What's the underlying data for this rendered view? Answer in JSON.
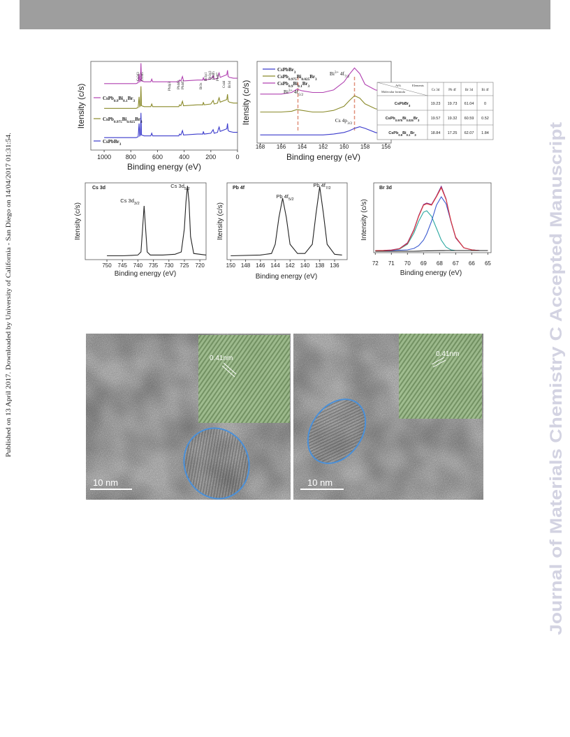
{
  "side_note": "Published on 13 April 2017. Downloaded by University of California - San Diego on 14/04/2017 01:31:54.",
  "watermark": "Journal of Materials Chemistry C Accepted Manuscript",
  "chart_data": [
    {
      "type": "line",
      "x_label": "Binding energy (eV)",
      "y_label": "Itensity (c/s)",
      "x": [
        1000,
        900,
        800,
        760,
        745,
        738,
        733,
        728,
        724,
        720,
        700,
        650,
        643,
        636,
        600,
        500,
        440,
        435,
        425,
        413,
        405,
        300,
        260,
        256,
        250,
        200,
        183,
        175,
        150,
        143,
        138,
        130,
        80,
        75,
        70,
        60,
        30,
        0
      ],
      "series": [
        {
          "name": "CsPbBr3",
          "color": "#3a3acc",
          "values": [
            14,
            14,
            14,
            14,
            15,
            30,
            16,
            17,
            42,
            17,
            16,
            16,
            19,
            16,
            16,
            16,
            16,
            18,
            17,
            22,
            17,
            18,
            18,
            21,
            18,
            19,
            23,
            19,
            20,
            24,
            26,
            21,
            24,
            30,
            22,
            21,
            20,
            20
          ]
        },
        {
          "name": "CsPb0.975Bi0.025Br3",
          "color": "#8a8a2a",
          "values": [
            47,
            47,
            47,
            47,
            48,
            60,
            49,
            50,
            72,
            50,
            49,
            49,
            52,
            49,
            49,
            49,
            49,
            51,
            50,
            55,
            50,
            51,
            51,
            54,
            51,
            52,
            56,
            52,
            53,
            57,
            59,
            54,
            57,
            63,
            55,
            54,
            53,
            53
          ]
        },
        {
          "name": "CsPb0.9Bi0.1Br3",
          "color": "#b040b0",
          "values": [
            75,
            75,
            75,
            75,
            76,
            86,
            77,
            78,
            98,
            78,
            77,
            77,
            80,
            77,
            77,
            77,
            77,
            79,
            78,
            83,
            78,
            79,
            79,
            82,
            79,
            80,
            84,
            80,
            81,
            85,
            87,
            82,
            85,
            90,
            83,
            82,
            81,
            81
          ]
        }
      ],
      "annotations": [
        "Cs3d3",
        "Cs3d5",
        "Pb4p3",
        "Pb4d3",
        "Pb4d5",
        "Br3s",
        "Br3p1",
        "Br3p3",
        "Pb4f5",
        "Pb4f7",
        "Cs4d",
        "Br3d"
      ],
      "xlim": [
        1100,
        0
      ],
      "xticks": [
        1000,
        800,
        600,
        400,
        200,
        0
      ],
      "ylim": [
        0,
        100
      ]
    },
    {
      "type": "line",
      "x_label": "Binding energy (eV)",
      "y_label": "Itensity (c/s)",
      "x": [
        168,
        167,
        166,
        165,
        164.5,
        164,
        163,
        162,
        161,
        160,
        159.5,
        159,
        158.5,
        158,
        157,
        156,
        155
      ],
      "series": [
        {
          "name": "CsPbBr3",
          "color": "#3a3acc",
          "values": [
            10,
            10,
            10,
            10,
            10,
            10,
            10,
            10,
            11,
            13,
            15,
            18,
            20,
            18,
            13,
            10,
            10
          ]
        },
        {
          "name": "CsPb0.975Bi0.025Br3",
          "color": "#8a8a2a",
          "values": [
            38,
            38,
            38,
            39,
            41,
            40,
            38,
            38,
            40,
            45,
            52,
            58,
            55,
            48,
            42,
            40,
            40
          ]
        },
        {
          "name": "CsPb0.9Bi0.1Br3",
          "color": "#b040b0",
          "values": [
            60,
            60,
            60,
            62,
            66,
            64,
            62,
            62,
            65,
            75,
            84,
            92,
            85,
            72,
            65,
            63,
            63
          ]
        }
      ],
      "annotations": [
        "Bi3+ 4f7/2",
        "Bi3+ 4f5/2",
        "Cs 4p3/2"
      ],
      "reference_lines": [
        164.4,
        159.0
      ],
      "xlim": [
        168.3,
        155.5
      ],
      "xticks": [
        168,
        166,
        164,
        162,
        160,
        158,
        156
      ],
      "ylim": [
        0,
        100
      ]
    },
    {
      "type": "line",
      "panel_label": "Cs 3d",
      "x_label": "Binding energy (eV)",
      "y_label": "Itensity (c/s)",
      "x": [
        750,
        745,
        742,
        740,
        739,
        738.5,
        738,
        737.5,
        737,
        736,
        732,
        728,
        726,
        725,
        724.5,
        724,
        723.5,
        723,
        722,
        718
      ],
      "series": [
        {
          "color": "#222222",
          "values": [
            5,
            5,
            5.5,
            6,
            10,
            40,
            70,
            40,
            10,
            6,
            6,
            7,
            10,
            40,
            75,
            96,
            75,
            30,
            8,
            6
          ]
        }
      ],
      "annotations": [
        "Cs 3d3/2",
        "Cs 3d5/2"
      ],
      "xlim": [
        757,
        718
      ],
      "xticks": [
        750,
        745,
        740,
        735,
        730,
        725,
        720
      ],
      "ylim": [
        0,
        100
      ]
    },
    {
      "type": "line",
      "panel_label": "Pb 4f",
      "x_label": "Binding energy (eV)",
      "y_label": "Itensity (c/s)",
      "x": [
        150,
        146,
        144.5,
        144,
        143.5,
        143,
        142.5,
        142,
        141,
        140,
        139,
        138.5,
        138,
        137.5,
        137,
        136,
        135
      ],
      "series": [
        {
          "color": "#222222",
          "values": [
            5,
            6,
            8,
            20,
            55,
            80,
            55,
            20,
            8,
            8,
            20,
            60,
            95,
            60,
            20,
            7,
            6
          ]
        }
      ],
      "annotations": [
        "Pb 4f5/2",
        "Pb 4f7/2"
      ],
      "xlim": [
        150.5,
        134.3
      ],
      "xticks": [
        150,
        148,
        146,
        144,
        142,
        140,
        138,
        136
      ],
      "ylim": [
        0,
        100
      ]
    },
    {
      "type": "line",
      "panel_label": "Br 3d",
      "x_label": "Binding energy (eV)",
      "y_label": "Intensity (c/s)",
      "x": [
        72,
        71.5,
        71,
        70.5,
        70,
        69.6,
        69.3,
        69,
        68.8,
        68.5,
        68.2,
        67.9,
        67.6,
        67.3,
        67,
        66.5,
        66,
        65.5,
        65
      ],
      "series": [
        {
          "color": "#2aa7a0",
          "values": [
            3,
            3,
            3.5,
            5,
            12,
            28,
            45,
            58,
            60,
            52,
            35,
            18,
            8,
            4,
            3,
            3,
            3,
            3,
            3
          ]
        },
        {
          "color": "#3a5ad0",
          "values": [
            3,
            3,
            3,
            3.5,
            4,
            6,
            10,
            18,
            27,
            45,
            68,
            80,
            70,
            45,
            22,
            7,
            4,
            3,
            3
          ]
        },
        {
          "color": "#7a2a8a",
          "values": [
            3,
            3.2,
            3.8,
            5.8,
            14,
            33,
            53,
            69,
            71,
            69,
            81,
            95,
            77,
            45,
            21,
            7,
            4,
            3,
            3
          ]
        },
        {
          "color": "#e03a3a",
          "values": [
            3,
            3,
            3.5,
            5.5,
            13,
            32,
            52,
            68,
            70,
            68,
            80,
            93,
            76,
            46,
            22,
            7,
            4,
            3,
            3
          ]
        },
        {
          "color": "#222222",
          "values": [
            2,
            2,
            2,
            2,
            2,
            2,
            2.2,
            2.5,
            2.6,
            2.7,
            2.8,
            2.9,
            3,
            3,
            3,
            3,
            3,
            3,
            3
          ]
        }
      ],
      "xlim": [
        72.1,
        64.8
      ],
      "xticks": [
        72,
        71,
        70,
        69,
        68,
        67,
        66,
        65
      ],
      "ylim": [
        0,
        100
      ]
    }
  ],
  "table": {
    "corner": [
      "At%",
      "Elements",
      "Molecular formula"
    ],
    "columns": [
      "Cs 3d",
      "Pb 4f",
      "Br 3d",
      "Bi 4f"
    ],
    "rows": [
      [
        "CsPbBr3",
        19.23,
        19.73,
        61.04,
        0
      ],
      [
        "CsPb0.975Bi0.025Br3",
        19.57,
        19.32,
        60.59,
        0.52
      ],
      [
        "CsPb0.9Bi0.1Br3",
        18.84,
        17.25,
        62.07,
        1.84
      ]
    ]
  },
  "images": [
    {
      "scale_bar": "10 nm",
      "lattice_label": "0.41nm"
    },
    {
      "scale_bar": "10 nm",
      "lattice_label": "0.41nm"
    }
  ]
}
